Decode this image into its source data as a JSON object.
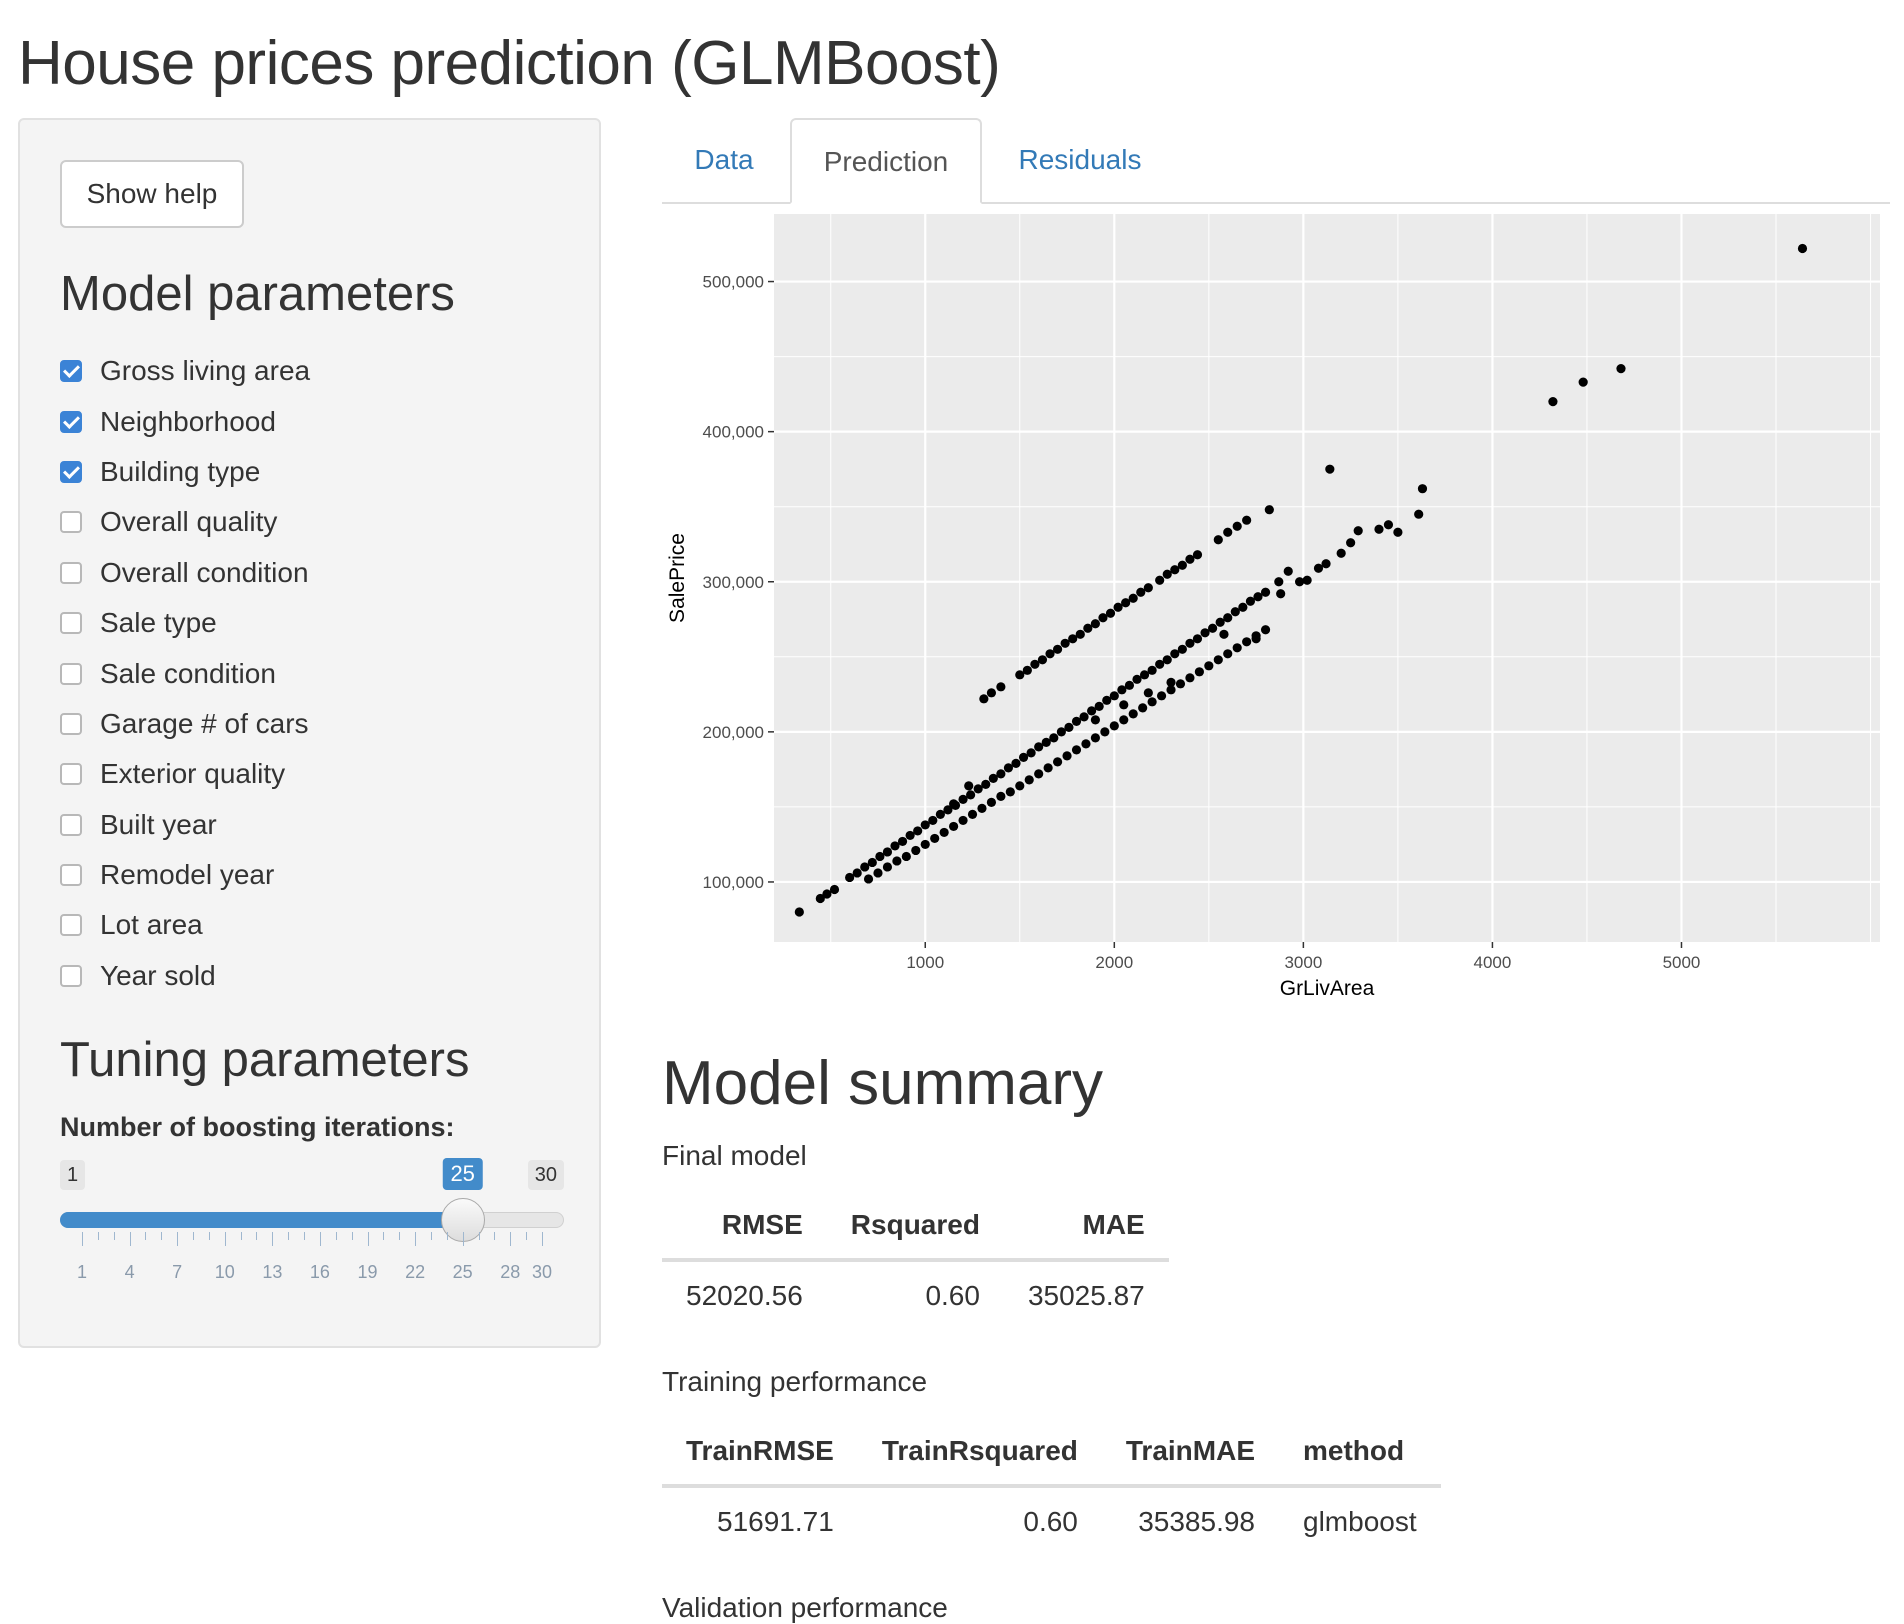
{
  "page_title": "House prices prediction (GLMBoost)",
  "sidebar": {
    "help_button": "Show help",
    "model_params_heading": "Model parameters",
    "checkboxes": [
      {
        "label": "Gross living area",
        "checked": true
      },
      {
        "label": "Neighborhood",
        "checked": true
      },
      {
        "label": "Building type",
        "checked": true
      },
      {
        "label": "Overall quality",
        "checked": false
      },
      {
        "label": "Overall condition",
        "checked": false
      },
      {
        "label": "Sale type",
        "checked": false
      },
      {
        "label": "Sale condition",
        "checked": false
      },
      {
        "label": "Garage # of cars",
        "checked": false
      },
      {
        "label": "Exterior quality",
        "checked": false
      },
      {
        "label": "Built year",
        "checked": false
      },
      {
        "label": "Remodel year",
        "checked": false
      },
      {
        "label": "Lot area",
        "checked": false
      },
      {
        "label": "Year sold",
        "checked": false
      }
    ],
    "tuning_heading": "Tuning parameters",
    "slider": {
      "label": "Number of boosting iterations:",
      "min": 1,
      "max": 30,
      "value": 25,
      "min_label": "1",
      "max_label": "30",
      "value_label": "25",
      "tick_labels": [
        "1",
        "4",
        "7",
        "10",
        "13",
        "16",
        "19",
        "22",
        "25",
        "28",
        "30"
      ]
    }
  },
  "tabs": [
    {
      "label": "Data",
      "active": false
    },
    {
      "label": "Prediction",
      "active": true
    },
    {
      "label": "Residuals",
      "active": false
    }
  ],
  "chart_data": {
    "type": "scatter",
    "xlabel": "GrLivArea",
    "ylabel": "SalePrice",
    "xlim": [
      200,
      6050
    ],
    "ylim": [
      60000,
      545000
    ],
    "x_ticks": [
      1000,
      2000,
      3000,
      4000,
      5000
    ],
    "x_tick_labels": [
      "1000",
      "2000",
      "3000",
      "4000",
      "5000"
    ],
    "y_ticks": [
      100000,
      200000,
      300000,
      400000,
      500000
    ],
    "y_tick_labels": [
      "100,000",
      "200,000",
      "300,000",
      "400,000",
      "500,000"
    ],
    "grid": true,
    "background": "#ebebeb",
    "point_color": "#000000",
    "points": [
      [
        334,
        80000
      ],
      [
        445,
        89000
      ],
      [
        480,
        92000
      ],
      [
        520,
        95000
      ],
      [
        600,
        103000
      ],
      [
        640,
        106000
      ],
      [
        680,
        110000
      ],
      [
        720,
        113000
      ],
      [
        760,
        117000
      ],
      [
        800,
        120000
      ],
      [
        840,
        124000
      ],
      [
        880,
        127000
      ],
      [
        920,
        131000
      ],
      [
        960,
        134000
      ],
      [
        1000,
        138000
      ],
      [
        1040,
        141000
      ],
      [
        1080,
        145000
      ],
      [
        1120,
        148000
      ],
      [
        1160,
        151000
      ],
      [
        1200,
        155000
      ],
      [
        1240,
        158000
      ],
      [
        1280,
        162000
      ],
      [
        1320,
        165000
      ],
      [
        1360,
        169000
      ],
      [
        1400,
        172000
      ],
      [
        1440,
        176000
      ],
      [
        1480,
        179000
      ],
      [
        1520,
        183000
      ],
      [
        1560,
        186000
      ],
      [
        1600,
        190000
      ],
      [
        1640,
        193000
      ],
      [
        1680,
        196000
      ],
      [
        1720,
        200000
      ],
      [
        1760,
        203000
      ],
      [
        1800,
        207000
      ],
      [
        1840,
        210000
      ],
      [
        1880,
        214000
      ],
      [
        1920,
        217000
      ],
      [
        1960,
        221000
      ],
      [
        2000,
        224000
      ],
      [
        2040,
        228000
      ],
      [
        2080,
        231000
      ],
      [
        2120,
        235000
      ],
      [
        2160,
        238000
      ],
      [
        2200,
        241000
      ],
      [
        2240,
        245000
      ],
      [
        2280,
        248000
      ],
      [
        2320,
        252000
      ],
      [
        2360,
        255000
      ],
      [
        2400,
        259000
      ],
      [
        2440,
        262000
      ],
      [
        2480,
        266000
      ],
      [
        2520,
        269000
      ],
      [
        2560,
        273000
      ],
      [
        2600,
        276000
      ],
      [
        2640,
        280000
      ],
      [
        2680,
        283000
      ],
      [
        2720,
        287000
      ],
      [
        2760,
        290000
      ],
      [
        2800,
        293000
      ],
      [
        700,
        102000
      ],
      [
        750,
        106000
      ],
      [
        800,
        110000
      ],
      [
        850,
        114000
      ],
      [
        900,
        117000
      ],
      [
        950,
        121000
      ],
      [
        1000,
        125000
      ],
      [
        1050,
        129000
      ],
      [
        1100,
        133000
      ],
      [
        1150,
        137000
      ],
      [
        1200,
        141000
      ],
      [
        1250,
        145000
      ],
      [
        1300,
        149000
      ],
      [
        1350,
        153000
      ],
      [
        1400,
        157000
      ],
      [
        1450,
        160000
      ],
      [
        1500,
        164000
      ],
      [
        1550,
        168000
      ],
      [
        1600,
        172000
      ],
      [
        1650,
        176000
      ],
      [
        1700,
        180000
      ],
      [
        1750,
        184000
      ],
      [
        1800,
        188000
      ],
      [
        1850,
        192000
      ],
      [
        1900,
        196000
      ],
      [
        1950,
        200000
      ],
      [
        2000,
        204000
      ],
      [
        2050,
        208000
      ],
      [
        2100,
        212000
      ],
      [
        2150,
        216000
      ],
      [
        2200,
        220000
      ],
      [
        2250,
        224000
      ],
      [
        2300,
        228000
      ],
      [
        2350,
        232000
      ],
      [
        2400,
        236000
      ],
      [
        2450,
        240000
      ],
      [
        2500,
        244000
      ],
      [
        2550,
        248000
      ],
      [
        2600,
        252000
      ],
      [
        2650,
        256000
      ],
      [
        2700,
        260000
      ],
      [
        2750,
        264000
      ],
      [
        2800,
        268000
      ],
      [
        1310,
        222000
      ],
      [
        1350,
        226000
      ],
      [
        1400,
        230000
      ],
      [
        1500,
        238000
      ],
      [
        1540,
        241000
      ],
      [
        1580,
        245000
      ],
      [
        1620,
        248000
      ],
      [
        1660,
        252000
      ],
      [
        1700,
        255000
      ],
      [
        1740,
        259000
      ],
      [
        1780,
        262000
      ],
      [
        1820,
        265000
      ],
      [
        1860,
        269000
      ],
      [
        1900,
        272000
      ],
      [
        1940,
        276000
      ],
      [
        1980,
        279000
      ],
      [
        2020,
        283000
      ],
      [
        2060,
        286000
      ],
      [
        2100,
        289000
      ],
      [
        2140,
        293000
      ],
      [
        2180,
        296000
      ],
      [
        2240,
        301000
      ],
      [
        2280,
        305000
      ],
      [
        2320,
        308000
      ],
      [
        2360,
        311000
      ],
      [
        2400,
        315000
      ],
      [
        2440,
        318000
      ],
      [
        2550,
        328000
      ],
      [
        2600,
        333000
      ],
      [
        2650,
        337000
      ],
      [
        2700,
        341000
      ],
      [
        2820,
        348000
      ],
      [
        2870,
        300000
      ],
      [
        2920,
        307000
      ],
      [
        3020,
        301000
      ],
      [
        3080,
        309000
      ],
      [
        3120,
        312000
      ],
      [
        3200,
        319000
      ],
      [
        3250,
        326000
      ],
      [
        3290,
        334000
      ],
      [
        3400,
        335000
      ],
      [
        3450,
        338000
      ],
      [
        3500,
        333000
      ],
      [
        3610,
        345000
      ],
      [
        3630,
        362000
      ],
      [
        3140,
        375000
      ],
      [
        4320,
        420000
      ],
      [
        4480,
        433000
      ],
      [
        4680,
        442000
      ],
      [
        5640,
        522000
      ],
      [
        1230,
        164000
      ],
      [
        2180,
        226000
      ],
      [
        2300,
        233000
      ],
      [
        2580,
        265000
      ],
      [
        2750,
        262000
      ],
      [
        2880,
        292000
      ],
      [
        2980,
        300000
      ],
      [
        1900,
        208000
      ],
      [
        2050,
        218000
      ],
      [
        1150,
        152000
      ]
    ]
  },
  "summary": {
    "title": "Model summary",
    "final_caption": "Final model",
    "final_headers": [
      "RMSE",
      "Rsquared",
      "MAE"
    ],
    "final_row": [
      "52020.56",
      "0.60",
      "35025.87"
    ],
    "train_caption": "Training performance",
    "train_headers": [
      "TrainRMSE",
      "TrainRsquared",
      "TrainMAE",
      "method"
    ],
    "train_row": [
      "51691.71",
      "0.60",
      "35385.98",
      "glmboost"
    ],
    "validation_caption": "Validation performance"
  }
}
